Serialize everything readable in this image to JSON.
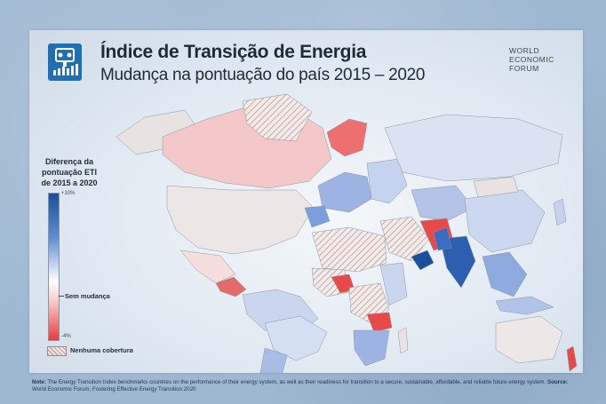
{
  "header": {
    "title": "Índice de Transição de Energia",
    "subtitle": "Mudança na pontuação do país 2015 – 2020"
  },
  "brand": {
    "line1": "WORLD",
    "line2": "ECONOMIC",
    "line3": "FORUM"
  },
  "legend": {
    "title_line1": "Diferença da",
    "title_line2": "pontuação ETI",
    "title_line3": "de 2015 a 2020",
    "max_label": "+10%",
    "mid_label": "Sem mudança",
    "min_label": "-4%",
    "no_coverage_label": "Nenhuma cobertura"
  },
  "footer": {
    "note_label": "Note:",
    "note_text": "The Energy Transition Index benchmarks countries on the performance of their energy system, as well as their readiness for transition to a secure, sustainable, affordable, and reliable future energy system.",
    "source_label": "Source:",
    "source_text": "World Economic Forum, Fostering Effective Energy Transition 2020"
  },
  "colors": {
    "strong_increase": "#1b4e9b",
    "increase": "#6c95d2",
    "slight_increase": "#c4d3ec",
    "no_change": "#f3efee",
    "decrease": "#e84a4a",
    "slight_decrease": "#f3bcbc",
    "no_coverage": "#d9c4c0"
  }
}
